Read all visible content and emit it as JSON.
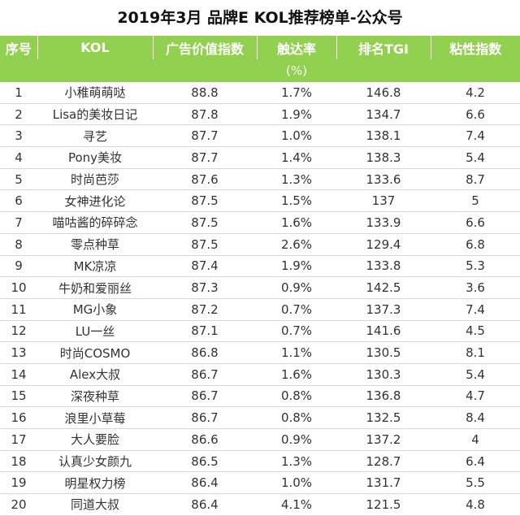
{
  "title": "2019年3月 品牌E KOL推荐榜单-公众号",
  "headers": [
    "序号",
    "KOL",
    "广告价值指数",
    "触达率",
    "排名TGI",
    "粘性指数"
  ],
  "unit_row": [
    "",
    "",
    "",
    "(%)",
    "",
    ""
  ],
  "rows": [
    [
      "1",
      "小稚萌萌哒",
      "88.8",
      "1.7%",
      "146.8",
      "4.2"
    ],
    [
      "2",
      "Lisa的美妆日记",
      "87.8",
      "1.9%",
      "134.7",
      "6.6"
    ],
    [
      "3",
      "寻艺",
      "87.7",
      "1.0%",
      "138.1",
      "7.4"
    ],
    [
      "4",
      "Pony美妆",
      "87.7",
      "1.4%",
      "138.3",
      "5.4"
    ],
    [
      "5",
      "时尚芭莎",
      "87.6",
      "1.3%",
      "133.6",
      "8.7"
    ],
    [
      "6",
      "女神进化论",
      "87.5",
      "1.5%",
      "137",
      "5"
    ],
    [
      "7",
      "喵咕酱的碎碎念",
      "87.5",
      "1.6%",
      "133.9",
      "6.6"
    ],
    [
      "8",
      "零点种草",
      "87.5",
      "2.6%",
      "129.4",
      "6.8"
    ],
    [
      "9",
      "MK凉凉",
      "87.4",
      "1.9%",
      "133.8",
      "5.3"
    ],
    [
      "10",
      "牛奶和爱丽丝",
      "87.3",
      "0.9%",
      "142.5",
      "3.6"
    ],
    [
      "11",
      "MG小象",
      "87.2",
      "0.7%",
      "137.3",
      "7.4"
    ],
    [
      "12",
      "LU一丝",
      "87.1",
      "0.7%",
      "141.6",
      "4.5"
    ],
    [
      "13",
      "时尚COSMO",
      "86.8",
      "1.1%",
      "130.5",
      "8.1"
    ],
    [
      "14",
      "Alex大叔",
      "86.7",
      "1.6%",
      "130.3",
      "5.4"
    ],
    [
      "15",
      "深夜种草",
      "86.7",
      "0.8%",
      "136.8",
      "4.7"
    ],
    [
      "16",
      "浪里小草莓",
      "86.7",
      "0.8%",
      "132.5",
      "8.4"
    ],
    [
      "17",
      "大人要脸",
      "86.6",
      "0.9%",
      "137.2",
      "4"
    ],
    [
      "18",
      "认真少女颜九",
      "86.5",
      "1.3%",
      "128.7",
      "6.4"
    ],
    [
      "19",
      "明星权力榜",
      "86.4",
      "1.0%",
      "131.7",
      "5.5"
    ],
    [
      "20",
      "同道大叔",
      "86.4",
      "4.1%",
      "121.5",
      "4.8"
    ]
  ]
}
